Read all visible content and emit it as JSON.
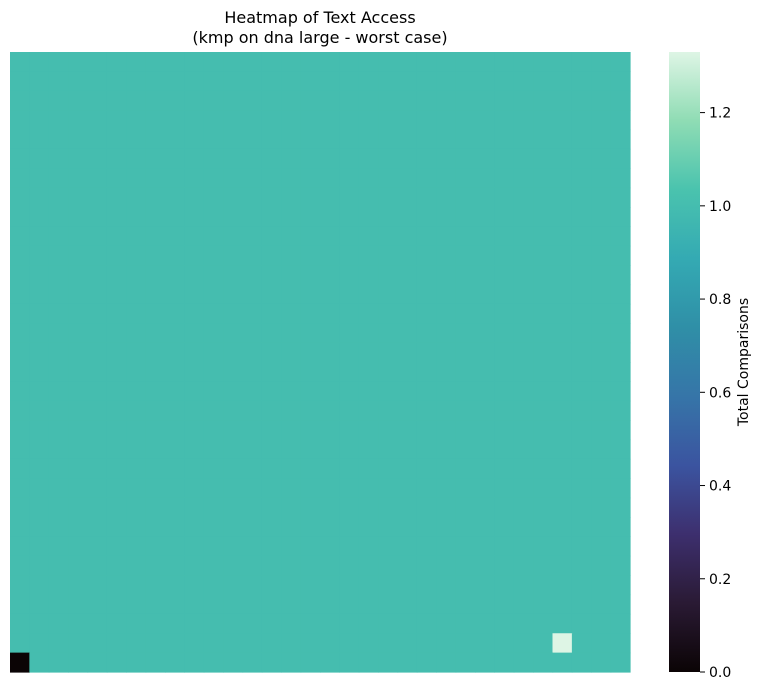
{
  "chart_data": {
    "type": "heatmap",
    "title": "Heatmap of Text Access",
    "subtitle": "(kmp on dna large - worst case)",
    "xlabel": "",
    "ylabel": "",
    "grid_rows": 32,
    "grid_cols": 32,
    "default_value": 1.0,
    "special_cells": [
      {
        "row": 31,
        "col": 0,
        "value": 0.0
      },
      {
        "row": 30,
        "col": 28,
        "value": 1.33
      }
    ],
    "colorbar": {
      "label": "Total Comparisons",
      "range": [
        0,
        1.33
      ],
      "ticks": [
        0.0,
        0.2,
        0.4,
        0.6,
        0.8,
        1.0,
        1.2
      ],
      "tick_labels": [
        "0.0",
        "0.2",
        "0.4",
        "0.6",
        "0.8",
        "1.0",
        "1.2"
      ],
      "colormap": "mako",
      "colors": [
        "#0b0405",
        "#2a1a34",
        "#3d2f6e",
        "#3b54a0",
        "#3675a8",
        "#2f8fa7",
        "#34aab3",
        "#4ac3ae",
        "#8fdcb4",
        "#def5e5"
      ]
    },
    "legend": "none"
  }
}
